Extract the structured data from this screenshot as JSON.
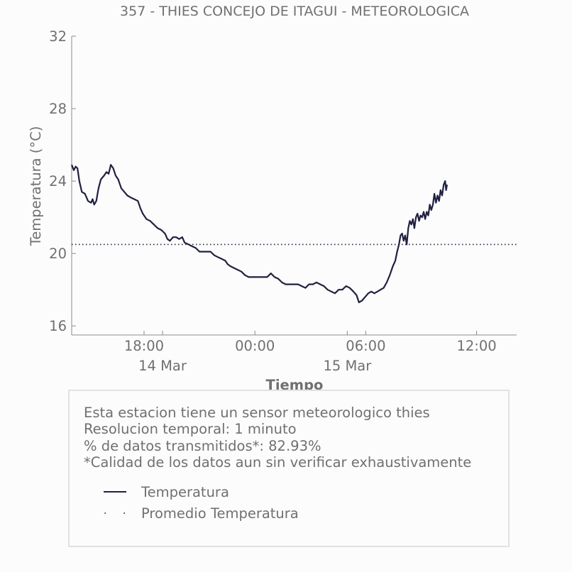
{
  "colors": {
    "background": "#fcfcfc",
    "text": "#707070",
    "series_line": "#20213f",
    "axis": "#8c8c8c",
    "box_border": "#e2e2e2"
  },
  "chart_data": {
    "type": "line",
    "title": "357 - THIES CONCEJO DE ITAGUI - METEOROLOGICA",
    "xlabel": "Tiempo",
    "ylabel": "Temperatura (°C)",
    "ylim": [
      15.5,
      32
    ],
    "y_ticks": [
      16,
      20,
      24,
      28,
      32
    ],
    "xlim": [
      "2024-03-14T14:05",
      "2024-03-15T14:10"
    ],
    "x_ticks": [
      {
        "label": "18:00",
        "time": "2024-03-14T18:00"
      },
      {
        "label": "00:00",
        "time": "2024-03-15T00:00"
      },
      {
        "label": "06:00",
        "time": "2024-03-15T06:00"
      },
      {
        "label": "12:00",
        "time": "2024-03-15T12:00"
      }
    ],
    "x_date_labels": [
      {
        "label": "14 Mar",
        "time": "2024-03-14T19:00"
      },
      {
        "label": "15 Mar",
        "time": "2024-03-15T05:00"
      }
    ],
    "grid": false,
    "series": [
      {
        "name": "Temperatura",
        "style": "solid",
        "points": [
          [
            "2024-03-14T14:05",
            24.9
          ],
          [
            "2024-03-14T14:12",
            24.6
          ],
          [
            "2024-03-14T14:18",
            24.8
          ],
          [
            "2024-03-14T14:24",
            24.7
          ],
          [
            "2024-03-14T14:30",
            24.0
          ],
          [
            "2024-03-14T14:38",
            23.4
          ],
          [
            "2024-03-14T14:48",
            23.3
          ],
          [
            "2024-03-14T14:58",
            22.9
          ],
          [
            "2024-03-14T15:08",
            22.8
          ],
          [
            "2024-03-14T15:13",
            23.0
          ],
          [
            "2024-03-14T15:18",
            22.7
          ],
          [
            "2024-03-14T15:25",
            22.9
          ],
          [
            "2024-03-14T15:32",
            23.6
          ],
          [
            "2024-03-14T15:40",
            24.1
          ],
          [
            "2024-03-14T15:50",
            24.3
          ],
          [
            "2024-03-14T15:58",
            24.5
          ],
          [
            "2024-03-14T16:05",
            24.4
          ],
          [
            "2024-03-14T16:12",
            24.9
          ],
          [
            "2024-03-14T16:20",
            24.7
          ],
          [
            "2024-03-14T16:28",
            24.3
          ],
          [
            "2024-03-14T16:36",
            24.1
          ],
          [
            "2024-03-14T16:46",
            23.6
          ],
          [
            "2024-03-14T16:56",
            23.4
          ],
          [
            "2024-03-14T17:06",
            23.2
          ],
          [
            "2024-03-14T17:16",
            23.1
          ],
          [
            "2024-03-14T17:28",
            23.0
          ],
          [
            "2024-03-14T17:40",
            22.9
          ],
          [
            "2024-03-14T17:48",
            22.5
          ],
          [
            "2024-03-14T17:56",
            22.2
          ],
          [
            "2024-03-14T18:08",
            21.9
          ],
          [
            "2024-03-14T18:20",
            21.8
          ],
          [
            "2024-03-14T18:32",
            21.6
          ],
          [
            "2024-03-14T18:44",
            21.4
          ],
          [
            "2024-03-14T18:56",
            21.3
          ],
          [
            "2024-03-14T19:08",
            21.1
          ],
          [
            "2024-03-14T19:16",
            20.8
          ],
          [
            "2024-03-14T19:24",
            20.7
          ],
          [
            "2024-03-14T19:34",
            20.9
          ],
          [
            "2024-03-14T19:44",
            20.9
          ],
          [
            "2024-03-14T19:54",
            20.8
          ],
          [
            "2024-03-14T20:04",
            20.9
          ],
          [
            "2024-03-14T20:12",
            20.6
          ],
          [
            "2024-03-14T20:24",
            20.5
          ],
          [
            "2024-03-14T20:36",
            20.4
          ],
          [
            "2024-03-14T20:48",
            20.3
          ],
          [
            "2024-03-14T21:00",
            20.1
          ],
          [
            "2024-03-14T21:12",
            20.1
          ],
          [
            "2024-03-14T21:24",
            20.1
          ],
          [
            "2024-03-14T21:36",
            20.1
          ],
          [
            "2024-03-14T21:48",
            19.9
          ],
          [
            "2024-03-14T22:00",
            19.8
          ],
          [
            "2024-03-14T22:12",
            19.7
          ],
          [
            "2024-03-14T22:24",
            19.6
          ],
          [
            "2024-03-14T22:32",
            19.4
          ],
          [
            "2024-03-14T22:40",
            19.3
          ],
          [
            "2024-03-14T22:52",
            19.2
          ],
          [
            "2024-03-14T23:04",
            19.1
          ],
          [
            "2024-03-14T23:16",
            19.0
          ],
          [
            "2024-03-14T23:28",
            18.8
          ],
          [
            "2024-03-14T23:40",
            18.7
          ],
          [
            "2024-03-15T00:00",
            18.7
          ],
          [
            "2024-03-15T00:20",
            18.7
          ],
          [
            "2024-03-15T00:40",
            18.7
          ],
          [
            "2024-03-15T00:52",
            18.9
          ],
          [
            "2024-03-15T01:04",
            18.7
          ],
          [
            "2024-03-15T01:16",
            18.6
          ],
          [
            "2024-03-15T01:28",
            18.4
          ],
          [
            "2024-03-15T01:40",
            18.3
          ],
          [
            "2024-03-15T02:00",
            18.3
          ],
          [
            "2024-03-15T02:20",
            18.3
          ],
          [
            "2024-03-15T02:32",
            18.2
          ],
          [
            "2024-03-15T02:44",
            18.1
          ],
          [
            "2024-03-15T02:56",
            18.3
          ],
          [
            "2024-03-15T03:08",
            18.3
          ],
          [
            "2024-03-15T03:20",
            18.4
          ],
          [
            "2024-03-15T03:32",
            18.3
          ],
          [
            "2024-03-15T03:44",
            18.2
          ],
          [
            "2024-03-15T03:56",
            18.0
          ],
          [
            "2024-03-15T04:08",
            17.9
          ],
          [
            "2024-03-15T04:20",
            17.8
          ],
          [
            "2024-03-15T04:32",
            18.0
          ],
          [
            "2024-03-15T04:44",
            18.0
          ],
          [
            "2024-03-15T04:56",
            18.2
          ],
          [
            "2024-03-15T05:08",
            18.1
          ],
          [
            "2024-03-15T05:20",
            17.9
          ],
          [
            "2024-03-15T05:30",
            17.7
          ],
          [
            "2024-03-15T05:38",
            17.3
          ],
          [
            "2024-03-15T05:48",
            17.4
          ],
          [
            "2024-03-15T05:58",
            17.6
          ],
          [
            "2024-03-15T06:08",
            17.8
          ],
          [
            "2024-03-15T06:18",
            17.9
          ],
          [
            "2024-03-15T06:28",
            17.8
          ],
          [
            "2024-03-15T06:38",
            17.9
          ],
          [
            "2024-03-15T06:48",
            18.0
          ],
          [
            "2024-03-15T06:58",
            18.1
          ],
          [
            "2024-03-15T07:08",
            18.4
          ],
          [
            "2024-03-15T07:18",
            18.8
          ],
          [
            "2024-03-15T07:28",
            19.3
          ],
          [
            "2024-03-15T07:36",
            19.6
          ],
          [
            "2024-03-15T07:42",
            20.1
          ],
          [
            "2024-03-15T07:48",
            20.5
          ],
          [
            "2024-03-15T07:53",
            21.0
          ],
          [
            "2024-03-15T07:58",
            21.1
          ],
          [
            "2024-03-15T08:03",
            20.7
          ],
          [
            "2024-03-15T08:08",
            21.0
          ],
          [
            "2024-03-15T08:13",
            20.5
          ],
          [
            "2024-03-15T08:18",
            21.4
          ],
          [
            "2024-03-15T08:23",
            21.8
          ],
          [
            "2024-03-15T08:28",
            21.6
          ],
          [
            "2024-03-15T08:33",
            21.9
          ],
          [
            "2024-03-15T08:38",
            21.4
          ],
          [
            "2024-03-15T08:43",
            22.0
          ],
          [
            "2024-03-15T08:48",
            22.2
          ],
          [
            "2024-03-15T08:53",
            21.8
          ],
          [
            "2024-03-15T08:58",
            22.1
          ],
          [
            "2024-03-15T09:03",
            22.0
          ],
          [
            "2024-03-15T09:08",
            22.3
          ],
          [
            "2024-03-15T09:13",
            21.9
          ],
          [
            "2024-03-15T09:18",
            22.3
          ],
          [
            "2024-03-15T09:23",
            22.1
          ],
          [
            "2024-03-15T09:28",
            22.7
          ],
          [
            "2024-03-15T09:33",
            22.4
          ],
          [
            "2024-03-15T09:38",
            22.7
          ],
          [
            "2024-03-15T09:43",
            23.3
          ],
          [
            "2024-03-15T09:48",
            22.8
          ],
          [
            "2024-03-15T09:53",
            23.2
          ],
          [
            "2024-03-15T09:58",
            22.9
          ],
          [
            "2024-03-15T10:03",
            23.5
          ],
          [
            "2024-03-15T10:08",
            23.2
          ],
          [
            "2024-03-15T10:13",
            23.8
          ],
          [
            "2024-03-15T10:18",
            24.0
          ],
          [
            "2024-03-15T10:21",
            23.5
          ],
          [
            "2024-03-15T10:24",
            23.8
          ]
        ]
      },
      {
        "name": "Promedio Temperatura",
        "style": "dotted",
        "value": 20.5
      }
    ]
  },
  "info_box": {
    "lines": [
      "Esta estacion tiene un sensor meteorologico thies",
      "Resolucion temporal: 1 minuto",
      "% de datos transmitidos*: 82.93%",
      "*Calidad de los datos aun sin verificar exhaustivamente"
    ]
  },
  "legend": {
    "items": [
      {
        "label": "Temperatura",
        "marker": "line"
      },
      {
        "label": "Promedio Temperatura",
        "marker": "dots"
      }
    ]
  }
}
